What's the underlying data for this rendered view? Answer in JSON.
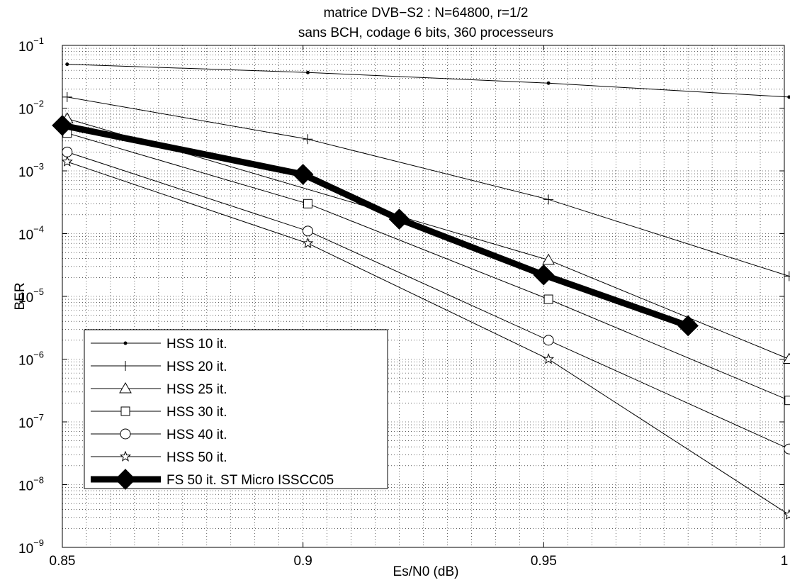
{
  "chart_data": {
    "type": "line",
    "title": "matrice DVB−S2 : N=64800, r=1/2",
    "subtitle": "sans BCH, codage 6 bits, 360 processeurs",
    "xlabel": "Es/N0 (dB)",
    "ylabel": "BER",
    "xlim": [
      0.85,
      1.0
    ],
    "ylim": [
      1e-09,
      0.1
    ],
    "yscale": "log",
    "grid": true,
    "legend_position": "bottom-left",
    "x_ticks": [
      "0.85",
      "0.9",
      "0.95",
      "1"
    ],
    "y_ticks": [
      {
        "base": "10",
        "exp": "−9"
      },
      {
        "base": "10",
        "exp": "−8"
      },
      {
        "base": "10",
        "exp": "−7"
      },
      {
        "base": "10",
        "exp": "−6"
      },
      {
        "base": "10",
        "exp": "−5"
      },
      {
        "base": "10",
        "exp": "−4"
      },
      {
        "base": "10",
        "exp": "−3"
      },
      {
        "base": "10",
        "exp": "−2"
      },
      {
        "base": "10",
        "exp": "−1"
      }
    ],
    "series": [
      {
        "name": "HSS 10 it.",
        "marker": "dot",
        "width": 1,
        "x": [
          0.851,
          0.901,
          0.951,
          1.001
        ],
        "y": [
          0.05,
          0.037,
          0.025,
          0.015
        ]
      },
      {
        "name": "HSS 20 it.",
        "marker": "plus",
        "width": 1,
        "x": [
          0.851,
          0.901,
          0.951,
          1.001
        ],
        "y": [
          0.015,
          0.0032,
          0.00035,
          2.1e-05
        ]
      },
      {
        "name": "HSS 25 it.",
        "marker": "triangle",
        "width": 1,
        "x": [
          0.851,
          0.951,
          1.001
        ],
        "y": [
          0.0068,
          3.8e-05,
          1e-06
        ]
      },
      {
        "name": "HSS 30 it.",
        "marker": "square",
        "width": 1,
        "x": [
          0.851,
          0.901,
          0.951,
          1.001
        ],
        "y": [
          0.004,
          0.0003,
          9e-06,
          2.2e-07
        ]
      },
      {
        "name": "HSS 40 it.",
        "marker": "circle",
        "width": 1,
        "x": [
          0.851,
          0.901,
          0.951,
          1.001
        ],
        "y": [
          0.002,
          0.00011,
          2e-06,
          3.7e-08
        ]
      },
      {
        "name": "HSS 50 it.",
        "marker": "star",
        "width": 1,
        "x": [
          0.851,
          0.901,
          0.951,
          1.001
        ],
        "y": [
          0.0014,
          7e-05,
          1e-06,
          3.3e-09
        ]
      },
      {
        "name": "FS 50 it. ST Micro ISSCC05",
        "marker": "diamond",
        "width": 9,
        "x": [
          0.85,
          0.9,
          0.92,
          0.95,
          0.98
        ],
        "y": [
          0.0053,
          0.00088,
          0.00017,
          2.2e-05,
          3.4e-06
        ]
      }
    ]
  }
}
